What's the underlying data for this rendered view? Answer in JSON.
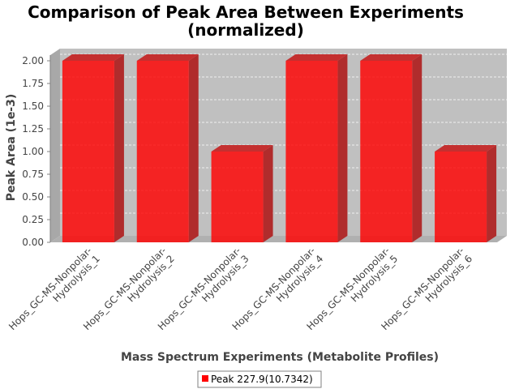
{
  "chart_data": {
    "type": "bar",
    "title": "Comparison of Peak Area Between Experiments (normalized)",
    "title_lines": [
      "Comparison of Peak Area Between Experiments",
      "(normalized)"
    ],
    "xlabel": "Mass Spectrum Experiments (Metabolite Profiles)",
    "ylabel": "Peak Area (1e-3)",
    "ylim": [
      0,
      2.0
    ],
    "yticks": [
      "0.00",
      "0.25",
      "0.50",
      "0.75",
      "1.00",
      "1.25",
      "1.50",
      "1.75",
      "2.00"
    ],
    "categories": [
      "Hops_GC-MS-Nonpolar-Hydrolysis_1",
      "Hops_GC-MS-Nonpolar-Hydrolysis_2",
      "Hops_GC-MS-Nonpolar-Hydrolysis_3",
      "Hops_GC-MS-Nonpolar-Hydrolysis_4",
      "Hops_GC-MS-Nonpolar-Hydrolysis_5",
      "Hops_GC-MS-Nonpolar-Hydrolysis_6"
    ],
    "category_lines": [
      [
        "Hops_GC-MS-Nonpolar-",
        "Hydrolysis_1"
      ],
      [
        "Hops_GC-MS-Nonpolar-",
        "Hydrolysis_2"
      ],
      [
        "Hops_GC-MS-Nonpolar-",
        "Hydrolysis_3"
      ],
      [
        "Hops_GC-MS-Nonpolar-",
        "Hydrolysis_4"
      ],
      [
        "Hops_GC-MS-Nonpolar-",
        "Hydrolysis_5"
      ],
      [
        "Hops_GC-MS-Nonpolar-",
        "Hydrolysis_6"
      ]
    ],
    "series": [
      {
        "name": "Peak 227.9(10.7342)",
        "values": [
          2.0,
          2.0,
          1.0,
          2.0,
          2.0,
          1.0
        ],
        "color": "#ff0000"
      }
    ],
    "grid": true,
    "legend": "bottom-center"
  }
}
